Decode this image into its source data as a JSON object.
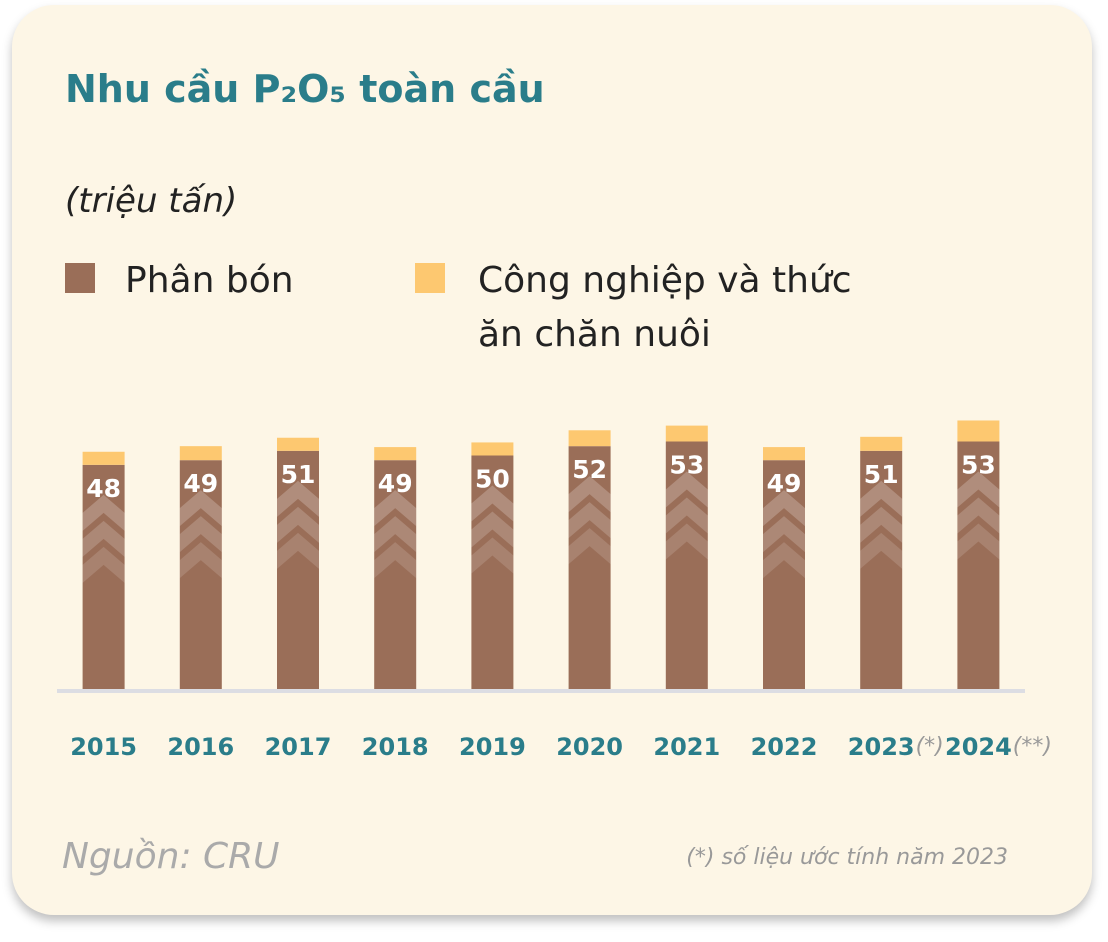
{
  "chart_data": {
    "type": "stacked_bar",
    "title": "Nhu cầu P₂O₅ toàn cầu",
    "subtitle": "(triệu tấn)",
    "categories": [
      "2015",
      "2016",
      "2017",
      "2018",
      "2019",
      "2020",
      "2021",
      "2022",
      "2023",
      "2024"
    ],
    "category_notes": [
      null,
      null,
      null,
      null,
      null,
      null,
      null,
      null,
      "(*)",
      "(**)"
    ],
    "series": [
      {
        "name": "Phân bón",
        "color": "#9a6e58",
        "values": [
          48,
          49,
          51,
          49,
          50,
          52,
          53,
          49,
          51,
          53
        ]
      },
      {
        "name": "Công nghiệp và thức ăn chăn nuôi",
        "color": "#fdc870",
        "values": [
          2.8,
          3,
          2.8,
          2.8,
          2.8,
          3.4,
          3.4,
          2.8,
          3,
          4.5
        ]
      }
    ],
    "source": "Nguồn: CRU",
    "footnote": "(*) số liệu ước tính năm 2023"
  }
}
